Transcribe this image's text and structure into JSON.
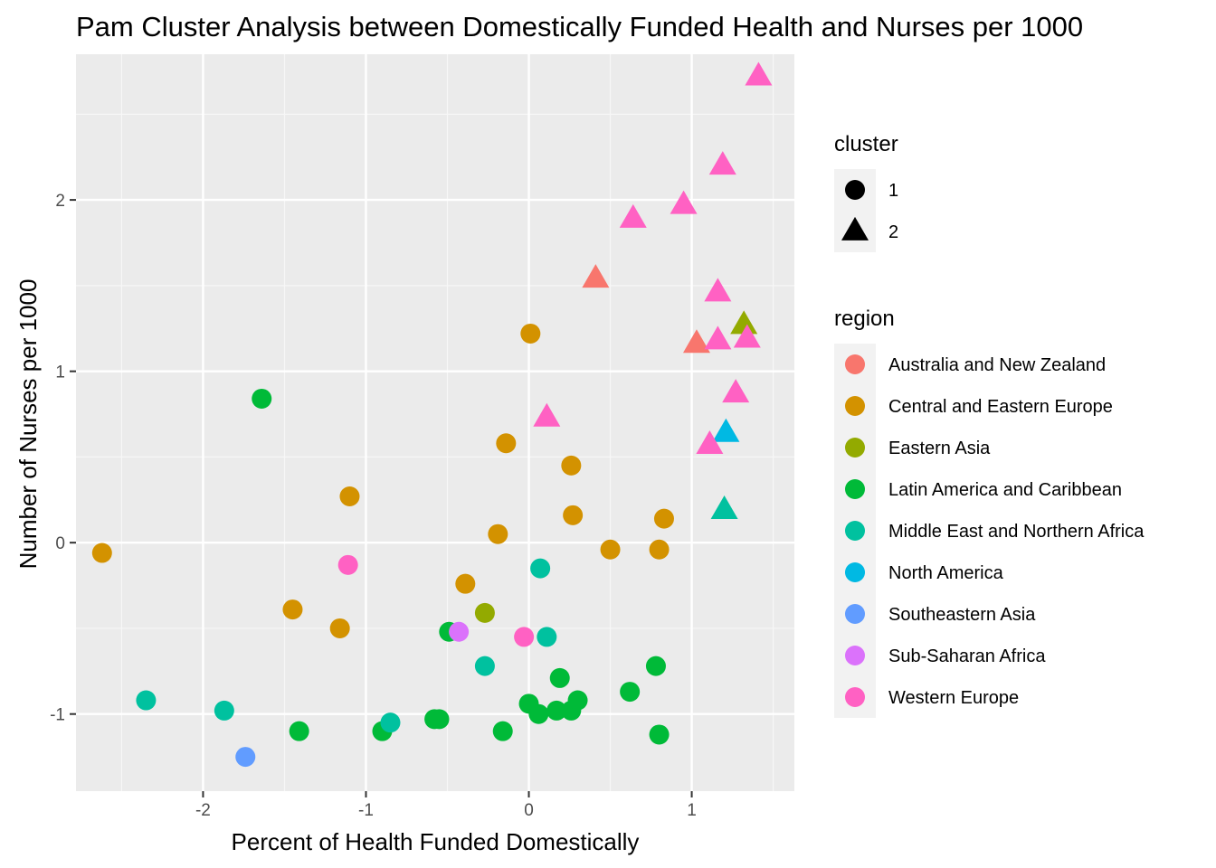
{
  "chart_data": {
    "type": "scatter",
    "title": "Pam Cluster Analysis between Domestically Funded Health and Nurses per 1000",
    "xlabel": "Percent of Health Funded Domestically",
    "ylabel": "Number of Nurses per 1000",
    "xlim": [
      -2.78,
      1.63
    ],
    "ylim": [
      -1.45,
      2.85
    ],
    "x_ticks": [
      -2,
      -1,
      0,
      1
    ],
    "x_tick_labels": [
      "-2",
      "-1",
      "0",
      "1"
    ],
    "y_ticks": [
      -1,
      0,
      1,
      2
    ],
    "y_tick_labels": [
      "-1",
      "0",
      "1",
      "2"
    ],
    "grid": true,
    "legend_position": "right",
    "shape_legend": {
      "title": "cluster",
      "items": [
        {
          "label": "1",
          "shape": "circle"
        },
        {
          "label": "2",
          "shape": "triangle"
        }
      ]
    },
    "color_legend": {
      "title": "region",
      "items": [
        {
          "label": "Australia and New Zealand",
          "color": "#F8766D"
        },
        {
          "label": "Central and Eastern Europe",
          "color": "#D39200"
        },
        {
          "label": "Eastern Asia",
          "color": "#93AA00"
        },
        {
          "label": "Latin America and Caribbean",
          "color": "#00BA38"
        },
        {
          "label": "Middle East and Northern Africa",
          "color": "#00C19F"
        },
        {
          "label": "North America",
          "color": "#00B9E3"
        },
        {
          "label": "Southeastern Asia",
          "color": "#619CFF"
        },
        {
          "label": "Sub-Saharan Africa",
          "color": "#DB72FB"
        },
        {
          "label": "Western Europe",
          "color": "#FF61C3"
        }
      ]
    },
    "points": [
      {
        "x": -2.62,
        "y": -0.06,
        "region": 1,
        "cluster": 1
      },
      {
        "x": -1.45,
        "y": -0.39,
        "region": 1,
        "cluster": 1
      },
      {
        "x": -1.16,
        "y": -0.5,
        "region": 1,
        "cluster": 1
      },
      {
        "x": -1.1,
        "y": 0.27,
        "region": 1,
        "cluster": 1
      },
      {
        "x": -0.39,
        "y": -0.24,
        "region": 1,
        "cluster": 1
      },
      {
        "x": -0.19,
        "y": 0.05,
        "region": 1,
        "cluster": 1
      },
      {
        "x": -0.14,
        "y": 0.58,
        "region": 1,
        "cluster": 1
      },
      {
        "x": 0.01,
        "y": 1.22,
        "region": 1,
        "cluster": 1
      },
      {
        "x": 0.26,
        "y": 0.45,
        "region": 1,
        "cluster": 1
      },
      {
        "x": 0.27,
        "y": 0.16,
        "region": 1,
        "cluster": 1
      },
      {
        "x": 0.5,
        "y": -0.04,
        "region": 1,
        "cluster": 1
      },
      {
        "x": 0.8,
        "y": -0.04,
        "region": 1,
        "cluster": 1
      },
      {
        "x": 0.83,
        "y": 0.14,
        "region": 1,
        "cluster": 1
      },
      {
        "x": -0.27,
        "y": -0.41,
        "region": 2,
        "cluster": 1
      },
      {
        "x": -1.64,
        "y": 0.84,
        "region": 3,
        "cluster": 1
      },
      {
        "x": -1.41,
        "y": -1.1,
        "region": 3,
        "cluster": 1
      },
      {
        "x": -0.9,
        "y": -1.1,
        "region": 3,
        "cluster": 1
      },
      {
        "x": -0.58,
        "y": -1.03,
        "region": 3,
        "cluster": 1
      },
      {
        "x": -0.55,
        "y": -1.03,
        "region": 3,
        "cluster": 1
      },
      {
        "x": -0.49,
        "y": -0.52,
        "region": 3,
        "cluster": 1
      },
      {
        "x": -0.16,
        "y": -1.1,
        "region": 3,
        "cluster": 1
      },
      {
        "x": 0.0,
        "y": -0.94,
        "region": 3,
        "cluster": 1
      },
      {
        "x": 0.06,
        "y": -1.0,
        "region": 3,
        "cluster": 1
      },
      {
        "x": 0.17,
        "y": -0.98,
        "region": 3,
        "cluster": 1
      },
      {
        "x": 0.19,
        "y": -0.79,
        "region": 3,
        "cluster": 1
      },
      {
        "x": 0.26,
        "y": -0.98,
        "region": 3,
        "cluster": 1
      },
      {
        "x": 0.3,
        "y": -0.92,
        "region": 3,
        "cluster": 1
      },
      {
        "x": 0.62,
        "y": -0.87,
        "region": 3,
        "cluster": 1
      },
      {
        "x": 0.78,
        "y": -0.72,
        "region": 3,
        "cluster": 1
      },
      {
        "x": 0.8,
        "y": -1.12,
        "region": 3,
        "cluster": 1
      },
      {
        "x": -2.35,
        "y": -0.92,
        "region": 4,
        "cluster": 1
      },
      {
        "x": -1.87,
        "y": -0.98,
        "region": 4,
        "cluster": 1
      },
      {
        "x": -0.85,
        "y": -1.05,
        "region": 4,
        "cluster": 1
      },
      {
        "x": -0.27,
        "y": -0.72,
        "region": 4,
        "cluster": 1
      },
      {
        "x": 0.07,
        "y": -0.15,
        "region": 4,
        "cluster": 1
      },
      {
        "x": 0.11,
        "y": -0.55,
        "region": 4,
        "cluster": 1
      },
      {
        "x": -1.74,
        "y": -1.25,
        "region": 6,
        "cluster": 1
      },
      {
        "x": -0.43,
        "y": -0.52,
        "region": 7,
        "cluster": 1
      },
      {
        "x": -1.11,
        "y": -0.13,
        "region": 8,
        "cluster": 1
      },
      {
        "x": -0.03,
        "y": -0.55,
        "region": 8,
        "cluster": 1
      },
      {
        "x": 0.41,
        "y": 1.54,
        "region": 0,
        "cluster": 2
      },
      {
        "x": 1.03,
        "y": 1.16,
        "region": 0,
        "cluster": 2
      },
      {
        "x": 1.32,
        "y": 1.27,
        "region": 2,
        "cluster": 2
      },
      {
        "x": 1.2,
        "y": 0.19,
        "region": 4,
        "cluster": 2
      },
      {
        "x": 1.21,
        "y": 0.64,
        "region": 5,
        "cluster": 2
      },
      {
        "x": 0.11,
        "y": 0.73,
        "region": 8,
        "cluster": 2
      },
      {
        "x": 0.64,
        "y": 1.89,
        "region": 8,
        "cluster": 2
      },
      {
        "x": 0.95,
        "y": 1.97,
        "region": 8,
        "cluster": 2
      },
      {
        "x": 1.11,
        "y": 0.57,
        "region": 8,
        "cluster": 2
      },
      {
        "x": 1.16,
        "y": 1.46,
        "region": 8,
        "cluster": 2
      },
      {
        "x": 1.16,
        "y": 1.18,
        "region": 8,
        "cluster": 2
      },
      {
        "x": 1.19,
        "y": 2.2,
        "region": 8,
        "cluster": 2
      },
      {
        "x": 1.27,
        "y": 0.87,
        "region": 8,
        "cluster": 2
      },
      {
        "x": 1.34,
        "y": 1.19,
        "region": 8,
        "cluster": 2
      },
      {
        "x": 1.41,
        "y": 2.72,
        "region": 8,
        "cluster": 2
      }
    ]
  }
}
